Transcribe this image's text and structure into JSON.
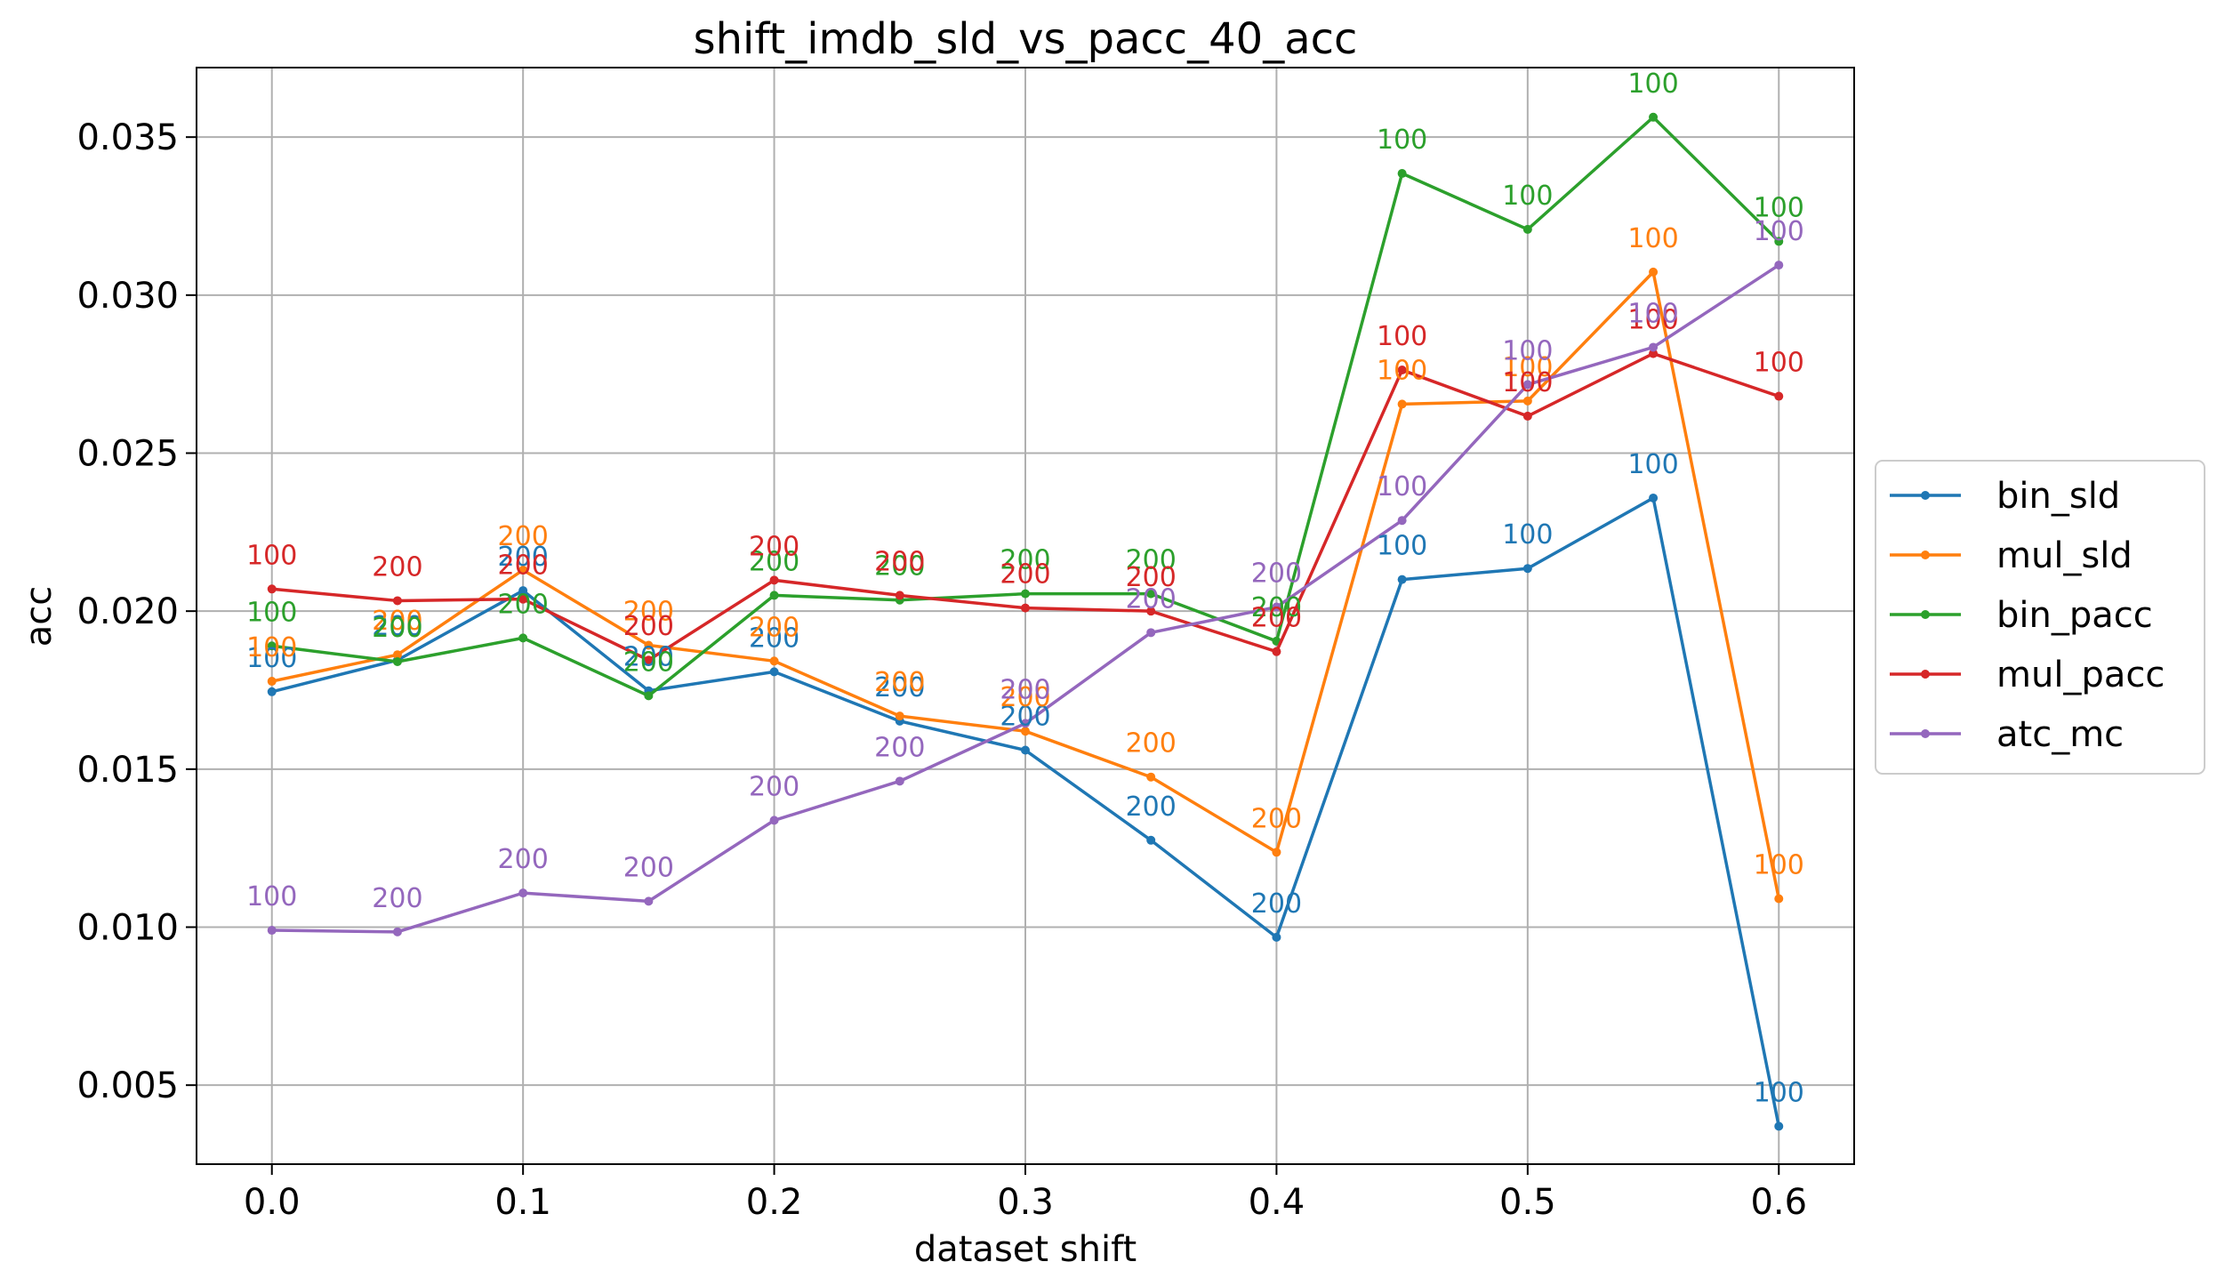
{
  "chart_data": {
    "type": "line",
    "title": "shift_imdb_sld_vs_pacc_40_acc",
    "xlabel": "dataset shift",
    "ylabel": "acc",
    "xlim": [
      -0.03,
      0.63
    ],
    "ylim": [
      0.0025,
      0.0372
    ],
    "xticks": [
      0.0,
      0.1,
      0.2,
      0.3,
      0.4,
      0.5,
      0.6
    ],
    "xtick_labels": [
      "0.0",
      "0.1",
      "0.2",
      "0.3",
      "0.4",
      "0.5",
      "0.6"
    ],
    "yticks": [
      0.005,
      0.01,
      0.015,
      0.02,
      0.025,
      0.03,
      0.035
    ],
    "ytick_labels": [
      "0.005",
      "0.010",
      "0.015",
      "0.020",
      "0.025",
      "0.030",
      "0.035"
    ],
    "grid": true,
    "legend_position": "right",
    "x": [
      0.0,
      0.05,
      0.1,
      0.15,
      0.2,
      0.25,
      0.3,
      0.35,
      0.4,
      0.45,
      0.5,
      0.55,
      0.6
    ],
    "series": [
      {
        "name": "bin_sld",
        "color": "#1f77b4",
        "values": [
          0.01745,
          0.01845,
          0.02065,
          0.01748,
          0.01808,
          0.01652,
          0.0156,
          0.01275,
          0.00968,
          0.021,
          0.02135,
          0.02358,
          0.0037
        ],
        "labels": [
          "100",
          "200",
          "200",
          "200",
          "200",
          "200",
          "200",
          "200",
          "200",
          "100",
          "100",
          "100",
          "100"
        ]
      },
      {
        "name": "mul_sld",
        "color": "#ff7f0e",
        "values": [
          0.01778,
          0.01862,
          0.0213,
          0.01892,
          0.01842,
          0.01668,
          0.0162,
          0.01475,
          0.01237,
          0.02655,
          0.02665,
          0.03073,
          0.0109
        ],
        "labels": [
          "100",
          "200",
          "200",
          "200",
          "200",
          "200",
          "200",
          "200",
          "200",
          "100",
          "100",
          "100",
          "100"
        ]
      },
      {
        "name": "bin_pacc",
        "color": "#2ca02c",
        "values": [
          0.0189,
          0.0184,
          0.01915,
          0.01732,
          0.0205,
          0.02035,
          0.02055,
          0.02055,
          0.01905,
          0.03385,
          0.03208,
          0.03563,
          0.0317
        ],
        "labels": [
          "100",
          "200",
          "200",
          "200",
          "200",
          "200",
          "200",
          "200",
          "200",
          "100",
          "100",
          "100",
          "100"
        ]
      },
      {
        "name": "mul_pacc",
        "color": "#d62728",
        "values": [
          0.0207,
          0.02033,
          0.02038,
          0.01845,
          0.02098,
          0.0205,
          0.0201,
          0.02,
          0.01872,
          0.02763,
          0.02617,
          0.02815,
          0.0268
        ],
        "labels": [
          "100",
          "200",
          "200",
          "200",
          "200",
          "200",
          "200",
          "200",
          "200",
          "100",
          "100",
          "100",
          "100"
        ]
      },
      {
        "name": "atc_mc",
        "color": "#9467bd",
        "values": [
          0.0099,
          0.00985,
          0.01108,
          0.01082,
          0.01338,
          0.01462,
          0.01645,
          0.01932,
          0.02013,
          0.02287,
          0.02717,
          0.02835,
          0.03095
        ],
        "labels": [
          "100",
          "200",
          "200",
          "200",
          "200",
          "200",
          "200",
          "200",
          "200",
          "100",
          "100",
          "100",
          "100"
        ]
      }
    ]
  }
}
